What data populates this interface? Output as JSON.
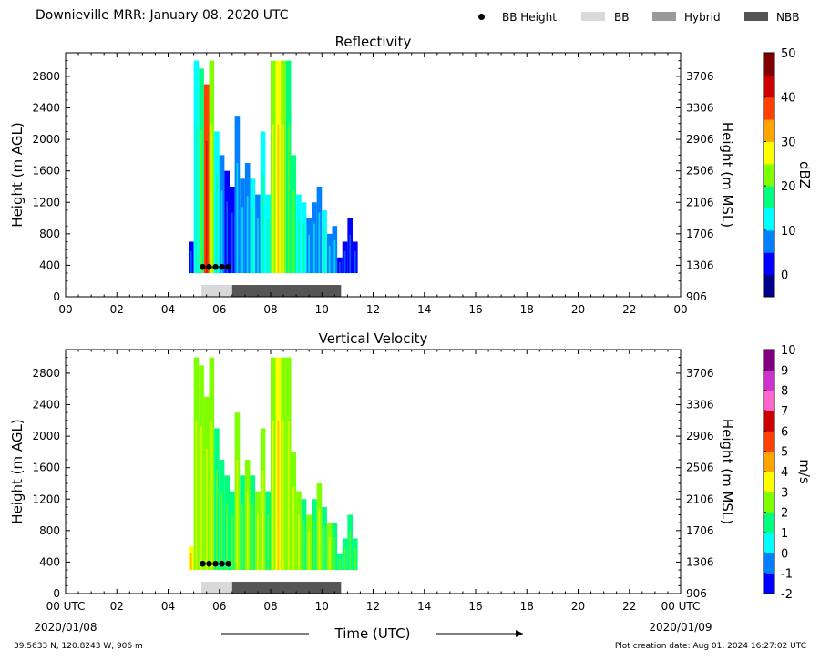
{
  "header": {
    "title": "Downieville MRR:  January 08, 2020 UTC",
    "legend": [
      {
        "label": "BB Height",
        "kind": "dot",
        "color": "#000000"
      },
      {
        "label": "BB",
        "kind": "swatch",
        "color": "#d9d9d9"
      },
      {
        "label": "Hybrid",
        "kind": "swatch",
        "color": "#999999"
      },
      {
        "label": "NBB",
        "kind": "swatch",
        "color": "#555555"
      }
    ]
  },
  "footer": {
    "location": "39.5633 N, 120.8243 W, 906 m",
    "creation": "Plot creation date: Aug 01, 2024 16:27:02 UTC",
    "time_axis_label": "Time (UTC)",
    "start_date": "2020/01/08",
    "end_date": "2020/01/09"
  },
  "chart_data": [
    {
      "type": "heatmap",
      "title": "Reflectivity",
      "xlabel": "",
      "ylabel": "Height (m AGL)",
      "ylabel_right": "Height (m MSL)",
      "x_ticks": [
        "00",
        "02",
        "04",
        "06",
        "08",
        "10",
        "12",
        "14",
        "16",
        "18",
        "20",
        "22",
        "00"
      ],
      "xlim": [
        0,
        24
      ],
      "y_ticks": [
        0,
        400,
        800,
        1200,
        1600,
        2000,
        2400,
        2800
      ],
      "y_right_ticks": [
        906,
        1306,
        1706,
        2106,
        2506,
        2906,
        3306,
        3706
      ],
      "ylim": [
        0,
        3100
      ],
      "colorbar": {
        "label": "dBZ",
        "min": -5,
        "max": 50,
        "ticks": [
          0,
          10,
          20,
          30,
          40,
          50
        ],
        "colors": [
          "#00008b",
          "#0000ff",
          "#0080ff",
          "#00ffff",
          "#00ff80",
          "#80ff00",
          "#ffff00",
          "#ffa500",
          "#ff4000",
          "#cc0000",
          "#800000"
        ]
      },
      "bb_height_points": [
        {
          "time": 5.35,
          "height": 380
        },
        {
          "time": 5.6,
          "height": 380
        },
        {
          "time": 5.85,
          "height": 380
        },
        {
          "time": 6.1,
          "height": 380
        },
        {
          "time": 6.35,
          "height": 380
        }
      ],
      "bb_classification": [
        {
          "class": "BB",
          "start": 5.3,
          "end": 6.5
        },
        {
          "class": "NBB",
          "start": 6.5,
          "end": 10.75
        }
      ],
      "precip_columns": [
        {
          "time": 4.9,
          "top": 700,
          "level": 1
        },
        {
          "time": 5.1,
          "top": 3000,
          "level": 3
        },
        {
          "time": 5.3,
          "top": 2900,
          "level": 4
        },
        {
          "time": 5.5,
          "top": 2700,
          "level": 8
        },
        {
          "time": 5.7,
          "top": 3000,
          "level": 5
        },
        {
          "time": 5.9,
          "top": 2100,
          "level": 3
        },
        {
          "time": 6.1,
          "top": 1800,
          "level": 2
        },
        {
          "time": 6.3,
          "top": 1600,
          "level": 1
        },
        {
          "time": 6.5,
          "top": 1400,
          "level": 1
        },
        {
          "time": 6.7,
          "top": 2300,
          "level": 2
        },
        {
          "time": 6.9,
          "top": 1500,
          "level": 2
        },
        {
          "time": 7.1,
          "top": 1700,
          "level": 2
        },
        {
          "time": 7.3,
          "top": 1500,
          "level": 3
        },
        {
          "time": 7.5,
          "top": 1300,
          "level": 2
        },
        {
          "time": 7.7,
          "top": 2100,
          "level": 3
        },
        {
          "time": 7.9,
          "top": 1300,
          "level": 3
        },
        {
          "time": 8.1,
          "top": 3000,
          "level": 5
        },
        {
          "time": 8.3,
          "top": 3000,
          "level": 6
        },
        {
          "time": 8.5,
          "top": 3000,
          "level": 5
        },
        {
          "time": 8.7,
          "top": 3000,
          "level": 4
        },
        {
          "time": 8.9,
          "top": 1800,
          "level": 4
        },
        {
          "time": 9.1,
          "top": 1300,
          "level": 3
        },
        {
          "time": 9.3,
          "top": 1200,
          "level": 3
        },
        {
          "time": 9.5,
          "top": 1000,
          "level": 2
        },
        {
          "time": 9.7,
          "top": 1200,
          "level": 2
        },
        {
          "time": 9.9,
          "top": 1400,
          "level": 2
        },
        {
          "time": 10.1,
          "top": 1100,
          "level": 3
        },
        {
          "time": 10.3,
          "top": 800,
          "level": 2
        },
        {
          "time": 10.5,
          "top": 900,
          "level": 2
        },
        {
          "time": 10.7,
          "top": 500,
          "level": 1
        },
        {
          "time": 10.9,
          "top": 700,
          "level": 1
        },
        {
          "time": 11.1,
          "top": 1000,
          "level": 1
        },
        {
          "time": 11.3,
          "top": 700,
          "level": 1
        }
      ]
    },
    {
      "type": "heatmap",
      "title": "Vertical Velocity",
      "xlabel": "Time (UTC)",
      "ylabel": "Height (m AGL)",
      "ylabel_right": "Height (m MSL)",
      "x_ticks": [
        "00 UTC",
        "02",
        "04",
        "06",
        "08",
        "10",
        "12",
        "14",
        "16",
        "18",
        "20",
        "22",
        "00 UTC"
      ],
      "xlim": [
        0,
        24
      ],
      "y_ticks": [
        0,
        400,
        800,
        1200,
        1600,
        2000,
        2400,
        2800
      ],
      "y_right_ticks": [
        906,
        1306,
        1706,
        2106,
        2506,
        2906,
        3306,
        3706
      ],
      "ylim": [
        0,
        3100
      ],
      "colorbar": {
        "label": "m/s",
        "min": -2,
        "max": 10,
        "ticks": [
          -2,
          -1,
          0,
          1,
          2,
          3,
          4,
          5,
          6,
          7,
          8,
          9,
          10
        ],
        "colors": [
          "#0000ff",
          "#0080ff",
          "#00ffff",
          "#00ff80",
          "#80ff00",
          "#ffff00",
          "#ffa500",
          "#ff4000",
          "#cc0000",
          "#ff66cc",
          "#cc33cc",
          "#800080"
        ]
      },
      "bb_height_points": [
        {
          "time": 5.35,
          "height": 380
        },
        {
          "time": 5.6,
          "height": 380
        },
        {
          "time": 5.85,
          "height": 380
        },
        {
          "time": 6.1,
          "height": 380
        },
        {
          "time": 6.35,
          "height": 380
        }
      ],
      "bb_classification": [
        {
          "class": "BB",
          "start": 5.3,
          "end": 6.5
        },
        {
          "class": "NBB",
          "start": 6.5,
          "end": 10.75
        }
      ],
      "precip_columns": [
        {
          "time": 4.9,
          "top": 600,
          "level": 5
        },
        {
          "time": 5.1,
          "top": 3000,
          "level": 4
        },
        {
          "time": 5.3,
          "top": 2900,
          "level": 4
        },
        {
          "time": 5.5,
          "top": 2500,
          "level": 4
        },
        {
          "time": 5.7,
          "top": 3000,
          "level": 4
        },
        {
          "time": 5.9,
          "top": 2100,
          "level": 3
        },
        {
          "time": 6.1,
          "top": 1700,
          "level": 3
        },
        {
          "time": 6.3,
          "top": 1500,
          "level": 3
        },
        {
          "time": 6.5,
          "top": 1300,
          "level": 3
        },
        {
          "time": 6.7,
          "top": 2300,
          "level": 4
        },
        {
          "time": 6.9,
          "top": 1500,
          "level": 3
        },
        {
          "time": 7.1,
          "top": 1700,
          "level": 4
        },
        {
          "time": 7.3,
          "top": 1500,
          "level": 3
        },
        {
          "time": 7.5,
          "top": 1300,
          "level": 4
        },
        {
          "time": 7.7,
          "top": 2100,
          "level": 4
        },
        {
          "time": 7.9,
          "top": 1300,
          "level": 3
        },
        {
          "time": 8.1,
          "top": 3000,
          "level": 4
        },
        {
          "time": 8.3,
          "top": 3000,
          "level": 5
        },
        {
          "time": 8.5,
          "top": 3000,
          "level": 4
        },
        {
          "time": 8.7,
          "top": 3000,
          "level": 4
        },
        {
          "time": 8.9,
          "top": 1800,
          "level": 4
        },
        {
          "time": 9.1,
          "top": 1300,
          "level": 4
        },
        {
          "time": 9.3,
          "top": 1200,
          "level": 3
        },
        {
          "time": 9.5,
          "top": 1000,
          "level": 4
        },
        {
          "time": 9.7,
          "top": 1200,
          "level": 3
        },
        {
          "time": 9.9,
          "top": 1400,
          "level": 4
        },
        {
          "time": 10.1,
          "top": 1100,
          "level": 3
        },
        {
          "time": 10.3,
          "top": 900,
          "level": 4
        },
        {
          "time": 10.5,
          "top": 900,
          "level": 3
        },
        {
          "time": 10.7,
          "top": 500,
          "level": 3
        },
        {
          "time": 10.9,
          "top": 700,
          "level": 3
        },
        {
          "time": 11.1,
          "top": 1000,
          "level": 3
        },
        {
          "time": 11.3,
          "top": 700,
          "level": 3
        }
      ]
    }
  ]
}
